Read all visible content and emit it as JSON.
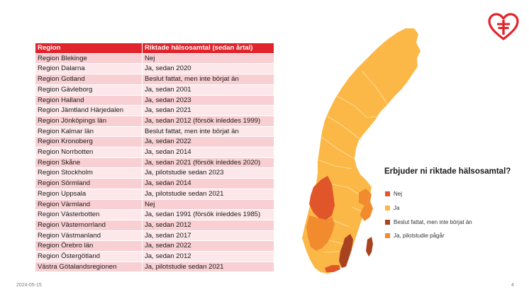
{
  "table": {
    "headers": [
      "Region",
      "Riktade hälsosamtal (sedan årtal)"
    ],
    "rows": [
      [
        "Region Blekinge",
        "Nej"
      ],
      [
        "Region Dalarna",
        "Ja, sedan 2020"
      ],
      [
        "Region Gotland",
        "Beslut fattat, men inte börjat än"
      ],
      [
        "Region Gävleborg",
        "Ja, sedan 2001"
      ],
      [
        "Region Halland",
        "Ja, sedan 2023"
      ],
      [
        "Region Jämtland Härjedalen",
        "Ja, sedan 2021"
      ],
      [
        "Region Jönköpings län",
        "Ja, sedan 2012 (försök inleddes 1999)"
      ],
      [
        "Region Kalmar län",
        "Beslut fattat, men inte börjat än"
      ],
      [
        "Region Kronoberg",
        "Ja, sedan 2022"
      ],
      [
        "Region Norrbotten",
        "Ja, sedan 2014"
      ],
      [
        "Region Skåne",
        "Ja, sedan 2021 (försök inleddes 2020)"
      ],
      [
        "Region Stockholm",
        "Ja, pilotstudie sedan 2023"
      ],
      [
        "Region Sörmland",
        "Ja, sedan 2014"
      ],
      [
        "Region Uppsala",
        "Ja, pilotstudie sedan 2021"
      ],
      [
        "Region Värmland",
        "Nej"
      ],
      [
        "Region Västerbotten",
        "Ja, sedan 1991 (försök inleddes 1985)"
      ],
      [
        "Region Västernorrland",
        "Ja, sedan 2012"
      ],
      [
        "Region Västmanland",
        "Ja, sedan 2017"
      ],
      [
        "Region Örebro län",
        "Ja, sedan 2022"
      ],
      [
        "Region Östergötland",
        "Ja, sedan 2012"
      ],
      [
        "Västra Götalandsregionen",
        "Ja, pilotstudie sedan 2021"
      ]
    ]
  },
  "legend": {
    "title": "Erbjuder ni riktade hälsosamtal?",
    "items": [
      {
        "label": "Nej",
        "color": "#e0562a"
      },
      {
        "label": "Ja",
        "color": "#fbb847"
      },
      {
        "label": "Beslut fattat, men inte börjat än",
        "color": "#a9431f"
      },
      {
        "label": "Ja, pilotstudie pågår",
        "color": "#f28a2e"
      }
    ]
  },
  "footer": {
    "date": "2024-05-15",
    "page_number": "4"
  },
  "colors": {
    "header_bg": "#e1242b",
    "row_odd": "#f8cfd2",
    "row_even": "#fce8ea",
    "brand": "#e1242b"
  }
}
